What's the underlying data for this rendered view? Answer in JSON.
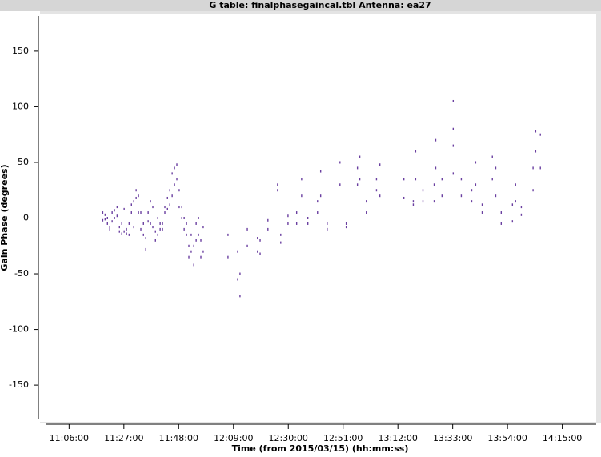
{
  "chart_data": {
    "type": "scatter",
    "title": "G table: finalphasegaincal.tbl    Antenna: ea27",
    "x_label": "Time (from 2015/03/15) (hh:mm:ss)",
    "y_label": "Gain Phase (degrees)",
    "color": "#6a3fa0",
    "xlim": [
      657,
      868
    ],
    "ylim": [
      -183,
      183
    ],
    "xticks": [
      {
        "value": 666,
        "label": "11:06:00"
      },
      {
        "value": 687,
        "label": "11:27:00"
      },
      {
        "value": 708,
        "label": "11:48:00"
      },
      {
        "value": 729,
        "label": "12:09:00"
      },
      {
        "value": 750,
        "label": "12:30:00"
      },
      {
        "value": 771,
        "label": "12:51:00"
      },
      {
        "value": 792,
        "label": "13:12:00"
      },
      {
        "value": 813,
        "label": "13:33:00"
      },
      {
        "value": 834,
        "label": "13:54:00"
      },
      {
        "value": 855,
        "label": "14:15:00"
      }
    ],
    "yticks": [
      -150,
      -100,
      -50,
      0,
      50,
      100,
      150
    ],
    "x": [
      678.9,
      678.9,
      679.8,
      679.8,
      680.7,
      680.7,
      681.6,
      681.6,
      682.5,
      682.5,
      683.4,
      683.4,
      684.4,
      684.4,
      685.3,
      685.3,
      686.2,
      686.2,
      687.1,
      687.1,
      688.0,
      688.0,
      689.0,
      689.0,
      689.9,
      689.9,
      690.8,
      690.8,
      691.7,
      691.7,
      692.6,
      692.6,
      693.5,
      693.5,
      694.5,
      694.5,
      695.4,
      695.4,
      696.3,
      696.3,
      697.2,
      697.2,
      698.1,
      698.1,
      699.1,
      699.1,
      700.0,
      700.0,
      700.9,
      700.9,
      701.8,
      701.8,
      702.7,
      702.7,
      703.7,
      703.7,
      704.6,
      704.6,
      705.5,
      705.5,
      706.4,
      706.4,
      707.3,
      707.3,
      708.2,
      708.2,
      709.2,
      709.2,
      710.1,
      710.1,
      711.0,
      711.0,
      711.9,
      711.9,
      712.8,
      712.8,
      713.8,
      713.8,
      714.7,
      714.7,
      715.6,
      715.6,
      716.5,
      716.5,
      717.4,
      717.4,
      726.9,
      726.9,
      730.6,
      730.6,
      731.5,
      731.5,
      734.3,
      734.3,
      738.2,
      738.2,
      739.2,
      739.2,
      742.2,
      742.2,
      745.9,
      745.9,
      747.1,
      747.1,
      749.9,
      749.9,
      753.2,
      753.2,
      755.1,
      755.1,
      757.5,
      757.5,
      761.2,
      761.2,
      762.4,
      762.4,
      764.9,
      764.9,
      769.8,
      769.8,
      772.2,
      772.2,
      776.5,
      776.5,
      777.4,
      777.4,
      779.9,
      779.9,
      783.8,
      783.8,
      785.1,
      785.1,
      794.3,
      794.3,
      797.9,
      797.9,
      798.8,
      798.8,
      801.6,
      801.6,
      805.9,
      805.9,
      806.5,
      806.5,
      808.9,
      808.9,
      813.2,
      813.2,
      813.2,
      813.2,
      816.3,
      816.3,
      820.3,
      820.3,
      821.8,
      821.8,
      824.3,
      824.3,
      828.2,
      828.2,
      829.5,
      829.5,
      831.6,
      831.6,
      835.9,
      835.9,
      837.1,
      837.1,
      839.3,
      839.3,
      843.8,
      843.8,
      844.8,
      844.8,
      846.6,
      846.6
    ],
    "values": [
      5,
      -2,
      3,
      -1,
      0,
      -5,
      -8,
      -10,
      5,
      -3,
      7,
      0,
      10,
      2,
      -8,
      -12,
      -5,
      -14,
      8,
      -12,
      -10,
      -14,
      -5,
      -15,
      12,
      5,
      15,
      -8,
      25,
      18,
      20,
      5,
      5,
      -10,
      -5,
      -15,
      -18,
      -28,
      5,
      -3,
      15,
      -5,
      10,
      -8,
      -12,
      -20,
      0,
      -15,
      -5,
      -10,
      -5,
      -10,
      10,
      5,
      18,
      8,
      25,
      12,
      40,
      20,
      45,
      30,
      48,
      35,
      25,
      10,
      10,
      0,
      0,
      -10,
      -5,
      -15,
      -25,
      -35,
      -15,
      -30,
      -25,
      -42,
      -5,
      -20,
      0,
      -15,
      -20,
      -35,
      -8,
      -30,
      -15,
      -35,
      -30,
      -55,
      -50,
      -70,
      -10,
      -25,
      -18,
      -30,
      -20,
      -32,
      -2,
      -10,
      30,
      25,
      -15,
      -22,
      2,
      -5,
      5,
      -5,
      35,
      20,
      0,
      -5,
      15,
      5,
      42,
      20,
      -5,
      -10,
      50,
      30,
      -5,
      -8,
      45,
      30,
      55,
      35,
      15,
      5,
      35,
      25,
      48,
      20,
      35,
      18,
      15,
      12,
      60,
      35,
      25,
      15,
      30,
      15,
      70,
      45,
      35,
      20,
      105,
      80,
      65,
      40,
      35,
      20,
      25,
      15,
      50,
      30,
      12,
      5,
      55,
      35,
      45,
      20,
      5,
      -5,
      12,
      -3,
      30,
      15,
      10,
      3,
      45,
      25,
      78,
      60,
      75,
      45
    ]
  }
}
